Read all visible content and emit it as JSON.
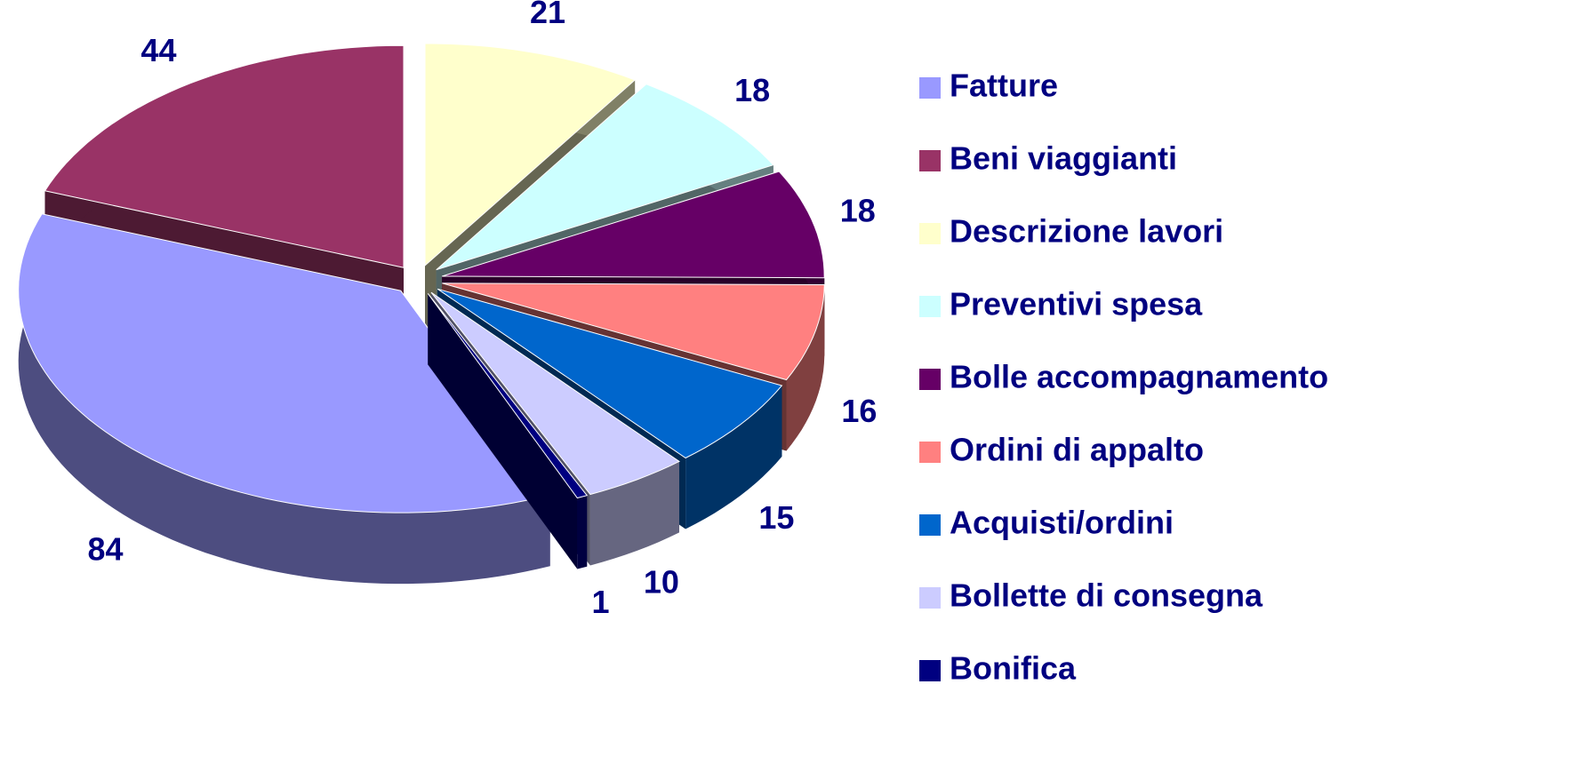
{
  "chart_data": {
    "type": "pie3d",
    "categories": [
      "Fatture",
      "Beni viaggianti",
      "Descrizione lavori",
      "Preventivi spesa",
      "Bolle accompagnamento",
      "Ordini di appalto",
      "Acquisti/ordini",
      "Bollette di consegna",
      "Bonifica"
    ],
    "values": [
      84,
      44,
      21,
      18,
      18,
      16,
      15,
      10,
      1
    ],
    "colors": [
      "#9999ff",
      "#993366",
      "#ffffcc",
      "#ccffff",
      "#660066",
      "#ff8080",
      "#0066cc",
      "#ccccff",
      "#000080"
    ],
    "legend": "right"
  }
}
